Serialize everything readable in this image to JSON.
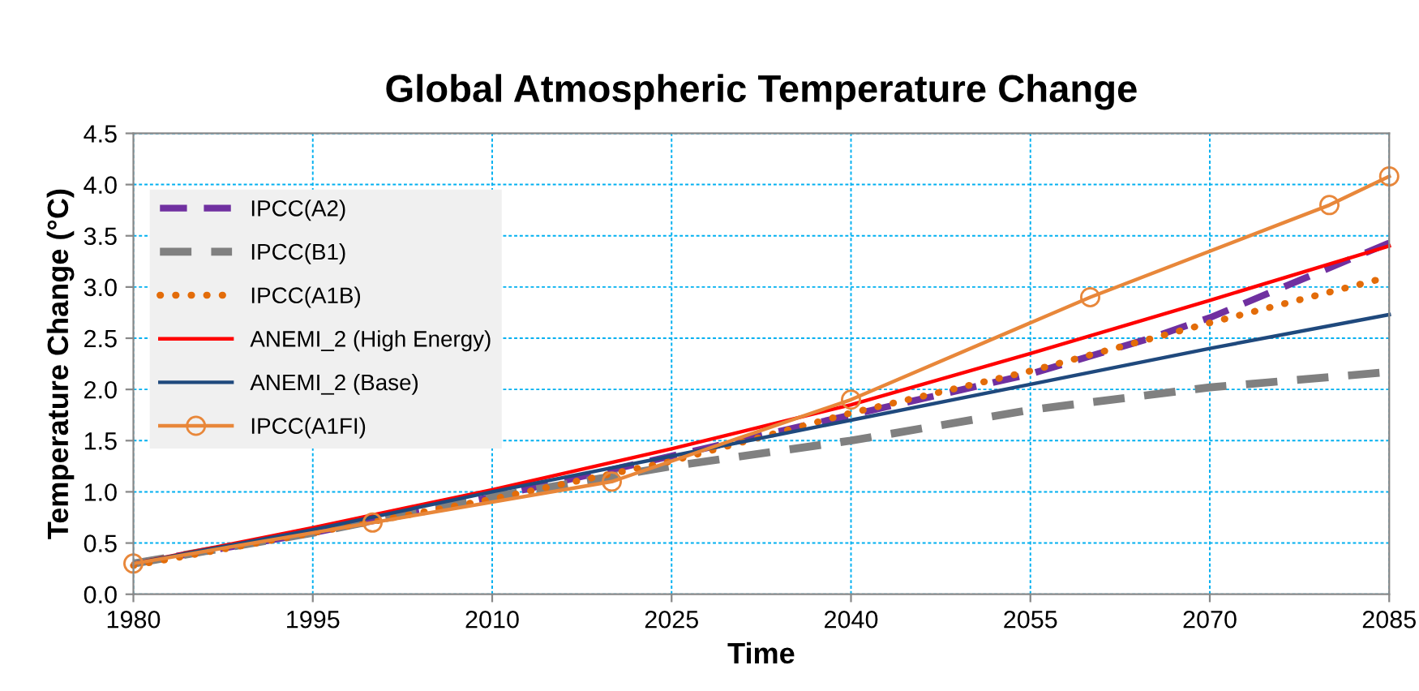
{
  "chart_data": {
    "type": "line",
    "title": "Global Atmospheric Temperature Change",
    "xlabel": "Time",
    "ylabel": "Temperature Change (°C)",
    "xlim": [
      1980,
      2085
    ],
    "xticks": [
      1980,
      1995,
      2010,
      2025,
      2040,
      2055,
      2070,
      2085
    ],
    "ylim": [
      0,
      4.5
    ],
    "yticks": [
      {
        "value": 0,
        "label": "0.0"
      },
      0.5,
      {
        "value": 1,
        "label": "1.0"
      },
      1.5,
      {
        "value": 2,
        "label": "2.0"
      },
      2.5,
      {
        "value": 3,
        "label": "3.0"
      },
      3.5,
      {
        "value": 4,
        "label": "4.0"
      },
      4.5
    ],
    "grid": true,
    "legend": "top left",
    "series": [
      {
        "name": "IPCC(A2)",
        "color": "#7030a0",
        "line_style": "dashed",
        "marker": "none",
        "x": [
          1980,
          1995,
          2010,
          2025,
          2040,
          2055,
          2065,
          2070,
          2085
        ],
        "values": [
          0.3,
          0.6,
          0.95,
          1.35,
          1.75,
          2.15,
          2.5,
          2.7,
          3.43
        ]
      },
      {
        "name": "IPCC(B1)",
        "color": "#808080",
        "line_style": "dashed",
        "marker": "none",
        "x": [
          1980,
          1995,
          2010,
          2025,
          2040,
          2055,
          2070,
          2085
        ],
        "values": [
          0.3,
          0.6,
          0.95,
          1.25,
          1.5,
          1.8,
          2.02,
          2.17
        ]
      },
      {
        "name": "IPCC(A1B)",
        "color": "#e36c09",
        "line_style": "dotted",
        "marker": "none",
        "x": [
          1980,
          1995,
          2010,
          2025,
          2040,
          2055,
          2070,
          2085
        ],
        "values": [
          0.28,
          0.6,
          0.93,
          1.3,
          1.77,
          2.18,
          2.65,
          3.1
        ]
      },
      {
        "name": "ANEMI_2 (High Energy)",
        "color": "#ff0000",
        "line_style": "solid",
        "marker": "none",
        "x": [
          1980,
          1995,
          2010,
          2025,
          2040,
          2055,
          2070,
          2085
        ],
        "values": [
          0.3,
          0.65,
          1.02,
          1.42,
          1.85,
          2.35,
          2.87,
          3.4
        ]
      },
      {
        "name": "ANEMI_2 (Base)",
        "color": "#1f497d",
        "line_style": "solid",
        "marker": "none",
        "x": [
          1980,
          1995,
          2010,
          2025,
          2040,
          2055,
          2070,
          2085
        ],
        "values": [
          0.3,
          0.63,
          1.0,
          1.35,
          1.7,
          2.05,
          2.4,
          2.73
        ]
      },
      {
        "name": "IPCC(A1FI)",
        "color": "#e8873a",
        "line_style": "solid",
        "marker": "circle",
        "x": [
          1980,
          2000,
          2020,
          2040,
          2060,
          2080,
          2085
        ],
        "values": [
          0.3,
          0.7,
          1.1,
          1.9,
          2.9,
          3.8,
          4.08
        ]
      }
    ]
  }
}
